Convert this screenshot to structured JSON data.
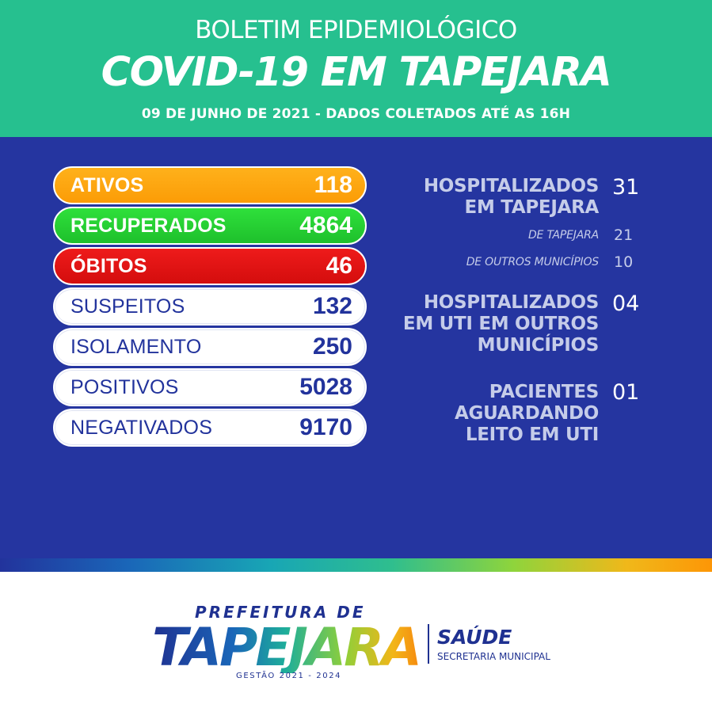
{
  "header": {
    "kicker": "BOLETIM EPIDEMIOLÓGICO",
    "headline": "COVID-19 EM TAPEJARA",
    "subline": "09 DE JUNHO DE 2021 - DADOS COLETADOS ATÉ AS 16H"
  },
  "pills": [
    {
      "label": "ATIVOS",
      "value": "118"
    },
    {
      "label": "RECUPERADOS",
      "value": "4864"
    },
    {
      "label": "ÓBITOS",
      "value": "46"
    },
    {
      "label": "SUSPEITOS",
      "value": "132"
    },
    {
      "label": "ISOLAMENTO",
      "value": "250"
    },
    {
      "label": "POSITIVOS",
      "value": "5028"
    },
    {
      "label": "NEGATIVADOS",
      "value": "9170"
    }
  ],
  "hospital": {
    "label_line1": "HOSPITALIZADOS",
    "label_line2": "EM TAPEJARA",
    "value": "31",
    "sub": [
      {
        "label": "DE TAPEJARA",
        "value": "21"
      },
      {
        "label": "DE OUTROS MUNICÍPIOS",
        "value": "10"
      }
    ]
  },
  "uti": {
    "label_line1": "HOSPITALIZADOS",
    "label_line2": "EM UTI EM OUTROS",
    "label_line3": "MUNICÍPIOS",
    "value": "04"
  },
  "waiting": {
    "label_line1": "PACIENTES",
    "label_line2": "AGUARDANDO",
    "label_line3": "LEITO EM UTI",
    "value": "01"
  },
  "footer": {
    "prefeitura": "PREFEITURA DE",
    "city": "TAPEJARA",
    "mandate": "GESTÃO 2021 - 2024",
    "saude": "SAÚDE",
    "secretaria": "SECRETARIA MUNICIPAL"
  },
  "colors": {
    "header_green": "#26c08f",
    "panel_blue": "#2535a0",
    "ativos_orange": "#fb9c06",
    "recuperados_green": "#1ec02c",
    "obitos_red": "#d40d0d",
    "navy_text": "#22339c",
    "light_label": "#c5cce9"
  }
}
